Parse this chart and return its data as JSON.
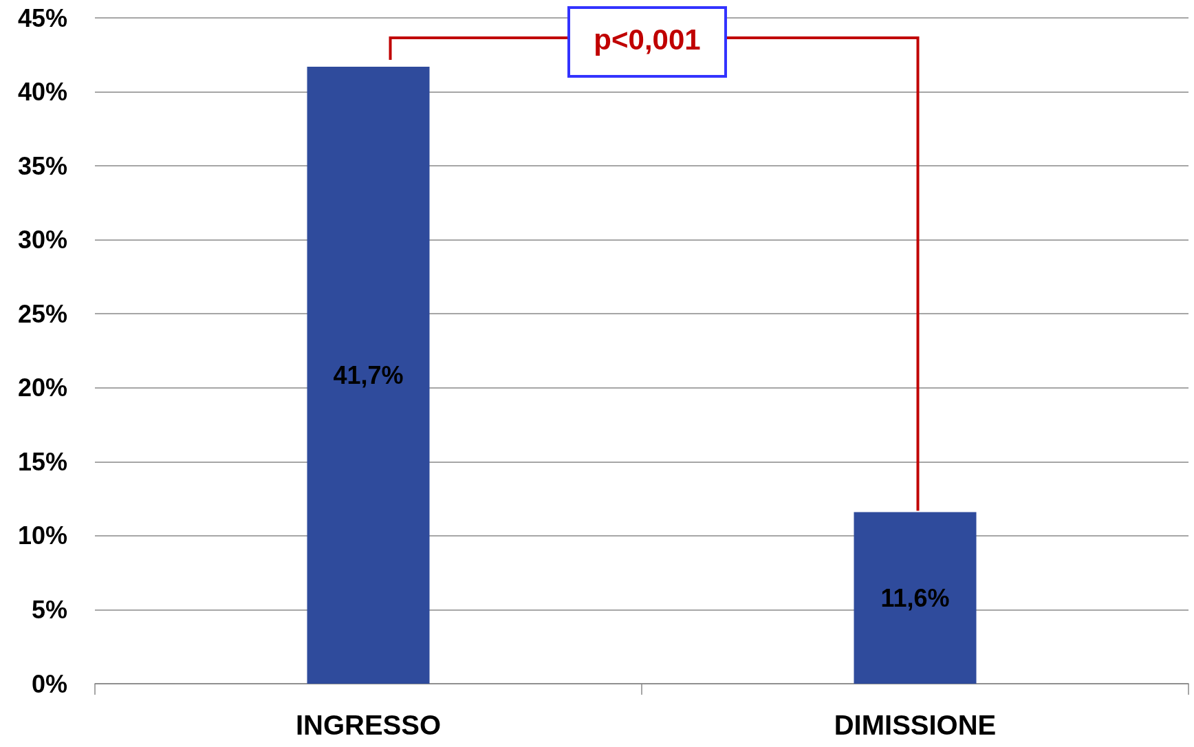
{
  "chart_data": {
    "type": "bar",
    "categories": [
      "INGRESSO",
      "DIMISSIONE"
    ],
    "values": [
      41.7,
      11.6
    ],
    "color": "#2f4b9c",
    "value_labels": [
      "41,7%",
      "11,6%"
    ],
    "ylim": [
      0,
      45
    ],
    "yticks": [
      {
        "value": 0,
        "label": "0%"
      },
      {
        "value": 5,
        "label": "5%"
      },
      {
        "value": 10,
        "label": "10%"
      },
      {
        "value": 15,
        "label": "15%"
      },
      {
        "value": 20,
        "label": "20%"
      },
      {
        "value": 25,
        "label": "25%"
      },
      {
        "value": 30,
        "label": "30%"
      },
      {
        "value": 35,
        "label": "35%"
      },
      {
        "value": 40,
        "label": "40%"
      },
      {
        "value": 45,
        "label": "45%"
      }
    ],
    "grid": "y",
    "annotations": [
      "p<0,001"
    ]
  }
}
